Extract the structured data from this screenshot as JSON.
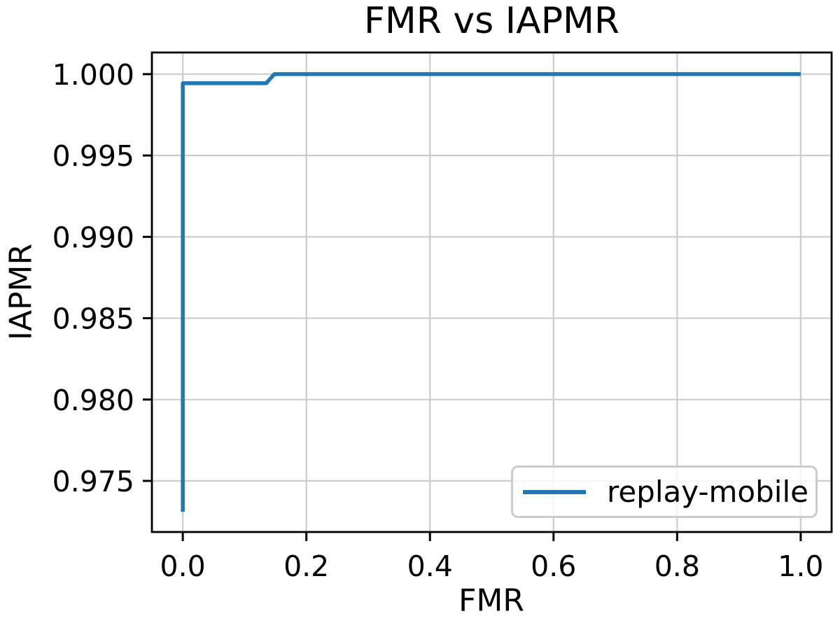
{
  "chart_data": {
    "type": "line",
    "title": "FMR vs IAPMR",
    "xlabel": "FMR",
    "ylabel": "IAPMR",
    "xlim": [
      -0.05,
      1.05
    ],
    "ylim": [
      0.97186,
      1.00133
    ],
    "grid": true,
    "grid_color": "#cccccc",
    "spine_color": "#000000",
    "tick_color": "#000000",
    "background_color": "#ffffff",
    "xticks": {
      "values": [
        0.0,
        0.2,
        0.4,
        0.6,
        0.8,
        1.0
      ],
      "labels": [
        "0.0",
        "0.2",
        "0.4",
        "0.6",
        "0.8",
        "1.0"
      ]
    },
    "yticks": {
      "values": [
        0.975,
        0.98,
        0.985,
        0.99,
        0.995,
        1.0
      ],
      "labels": [
        "0.975",
        "0.980",
        "0.985",
        "0.990",
        "0.995",
        "1.000"
      ]
    },
    "legend": {
      "position": "lower right",
      "entries": [
        "replay-mobile"
      ]
    },
    "series": [
      {
        "name": "replay-mobile",
        "color": "#1f77b4",
        "points": [
          [
            0.0,
            0.9731
          ],
          [
            0.0,
            0.99944
          ],
          [
            0.135,
            0.99944
          ],
          [
            0.148,
            1.0
          ],
          [
            1.0,
            1.0
          ]
        ]
      }
    ]
  }
}
